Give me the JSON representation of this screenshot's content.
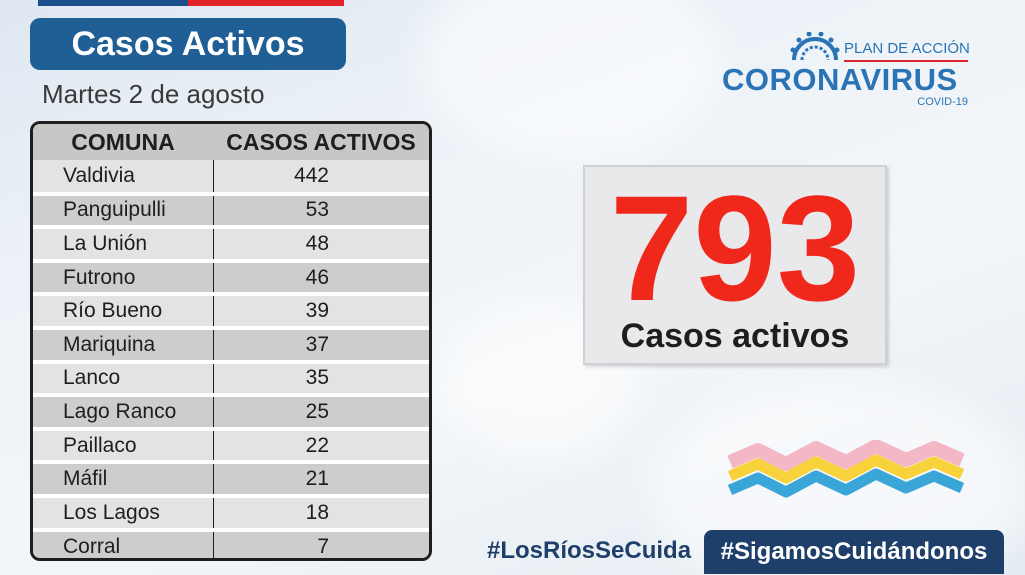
{
  "header": {
    "title": "Casos Activos",
    "date": "Martes 2 de agosto"
  },
  "table": {
    "headers": [
      "COMUNA",
      "CASOS ACTIVOS"
    ],
    "rows": [
      {
        "comuna": "Valdivia",
        "casos": "442"
      },
      {
        "comuna": "Panguipulli",
        "casos": "53"
      },
      {
        "comuna": "La Unión",
        "casos": "48"
      },
      {
        "comuna": "Futrono",
        "casos": "46"
      },
      {
        "comuna": "Río Bueno",
        "casos": "39"
      },
      {
        "comuna": "Mariquina",
        "casos": "37"
      },
      {
        "comuna": "Lanco",
        "casos": "35"
      },
      {
        "comuna": "Lago Ranco",
        "casos": "25"
      },
      {
        "comuna": "Paillaco",
        "casos": "22"
      },
      {
        "comuna": "Máfil",
        "casos": "21"
      },
      {
        "comuna": "Los Lagos",
        "casos": "18"
      },
      {
        "comuna": "Corral",
        "casos": "7"
      }
    ]
  },
  "logo": {
    "plan": "PLAN DE ACCIÓN",
    "name": "CORONAVIRUS",
    "sub": "COVID-19",
    "icon": "virus-icon"
  },
  "total": {
    "value": "793",
    "label": "Casos activos"
  },
  "hashtags": {
    "left": "#LosRíosSeCuida",
    "right": "#SigamosCuidándonos"
  },
  "colors": {
    "brand_blue": "#1f5f95",
    "logo_blue": "#2a74b5",
    "accent_red": "#f0271b",
    "navy": "#1f3f6b",
    "wave_pink": "#f4b7c6",
    "wave_yellow": "#f7d23a",
    "wave_blue": "#3aa6d8"
  }
}
